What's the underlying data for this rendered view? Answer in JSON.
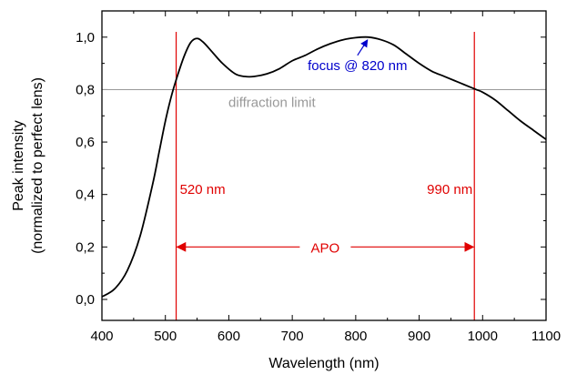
{
  "chart_data": {
    "type": "line",
    "title": "",
    "xlabel": "Wavelength (nm)",
    "ylabel": [
      "Peak intensity",
      "(normalized to perfect lens)"
    ],
    "xlim": [
      400,
      1100
    ],
    "ylim": [
      -0.08,
      1.1
    ],
    "xticks": [
      400,
      500,
      600,
      700,
      800,
      900,
      1000,
      1100
    ],
    "xtick_labels": [
      "400",
      "500",
      "600",
      "700",
      "800",
      "900",
      "1000",
      "1100"
    ],
    "yticks": [
      0.0,
      0.2,
      0.4,
      0.6,
      0.8,
      1.0
    ],
    "ytick_labels": [
      "0,0",
      "0,2",
      "0,4",
      "0,6",
      "0,8",
      "1,0"
    ],
    "grid": false,
    "legend": "none",
    "series": [
      {
        "color": "#000000",
        "x": [
          400,
          420,
          440,
          460,
          480,
          490,
          500,
          510,
          520,
          530,
          540,
          550,
          560,
          575,
          590,
          610,
          625,
          640,
          660,
          680,
          700,
          720,
          740,
          760,
          780,
          800,
          820,
          840,
          860,
          880,
          900,
          920,
          940,
          960,
          980,
          990,
          1000,
          1020,
          1040,
          1060,
          1080,
          1100
        ],
        "y": [
          0.01,
          0.04,
          0.11,
          0.24,
          0.44,
          0.56,
          0.68,
          0.78,
          0.86,
          0.93,
          0.98,
          0.995,
          0.98,
          0.94,
          0.9,
          0.86,
          0.85,
          0.85,
          0.86,
          0.88,
          0.91,
          0.93,
          0.955,
          0.975,
          0.99,
          0.998,
          1.0,
          0.99,
          0.97,
          0.935,
          0.9,
          0.87,
          0.85,
          0.83,
          0.81,
          0.8,
          0.79,
          0.76,
          0.72,
          0.68,
          0.645,
          0.61
        ]
      }
    ],
    "reference_line": {
      "y": 0.8,
      "label": "diffraction limit",
      "color": "#999999"
    },
    "vertical_markers": [
      {
        "x": 517,
        "label": "520 nm",
        "color": "#e00000"
      },
      {
        "x": 987,
        "label": "990 nm",
        "color": "#e00000"
      }
    ],
    "range_arrow": {
      "x1": 517,
      "x2": 987,
      "y": 0.2,
      "label": "APO",
      "color": "#e00000"
    },
    "focus_annotation": {
      "x": 820,
      "y": 1.0,
      "label": "focus @ 820 nm",
      "color": "#0000cc"
    }
  }
}
